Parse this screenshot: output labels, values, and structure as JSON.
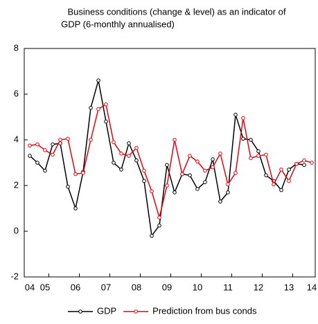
{
  "chart_data": {
    "type": "line",
    "title": [
      "Business conditions (change & level) as an indicator of",
      "GDP (6-monthly annualised)"
    ],
    "categories": [
      "04",
      null,
      "05",
      null,
      null,
      null,
      "06",
      null,
      null,
      null,
      "07",
      null,
      null,
      null,
      "08",
      null,
      null,
      null,
      "09",
      null,
      null,
      null,
      "10",
      null,
      null,
      null,
      "11",
      null,
      null,
      null,
      "12",
      null,
      null,
      null,
      "13",
      null,
      null,
      "14"
    ],
    "series": [
      {
        "name": "GDP",
        "color": "#000000",
        "values": [
          3.3,
          3.0,
          2.65,
          3.8,
          3.85,
          1.95,
          1.0,
          2.6,
          5.4,
          6.6,
          4.8,
          3.0,
          2.7,
          3.85,
          3.1,
          2.2,
          -0.2,
          0.25,
          2.9,
          1.7,
          2.5,
          2.45,
          1.85,
          2.15,
          3.15,
          1.3,
          1.7,
          5.1,
          4.05,
          4.0,
          3.5,
          2.45,
          2.2,
          1.8,
          2.7,
          2.95,
          2.9,
          null
        ]
      },
      {
        "name": "Prediction from bus conds",
        "color": "#e8000b",
        "values": [
          3.75,
          3.8,
          3.55,
          3.35,
          4.0,
          4.05,
          2.5,
          2.55,
          4.0,
          5.35,
          5.55,
          3.9,
          3.4,
          3.3,
          3.65,
          2.65,
          1.75,
          0.6,
          2.0,
          4.0,
          2.5,
          3.3,
          3.05,
          2.65,
          2.8,
          3.4,
          2.05,
          2.55,
          4.95,
          3.2,
          3.3,
          3.35,
          2.05,
          2.7,
          2.2,
          2.95,
          3.1,
          3.0
        ]
      }
    ],
    "ylim": [
      -2,
      8
    ],
    "yticks": [
      -2,
      0,
      2,
      4,
      6,
      8
    ],
    "legend": "bottom"
  }
}
